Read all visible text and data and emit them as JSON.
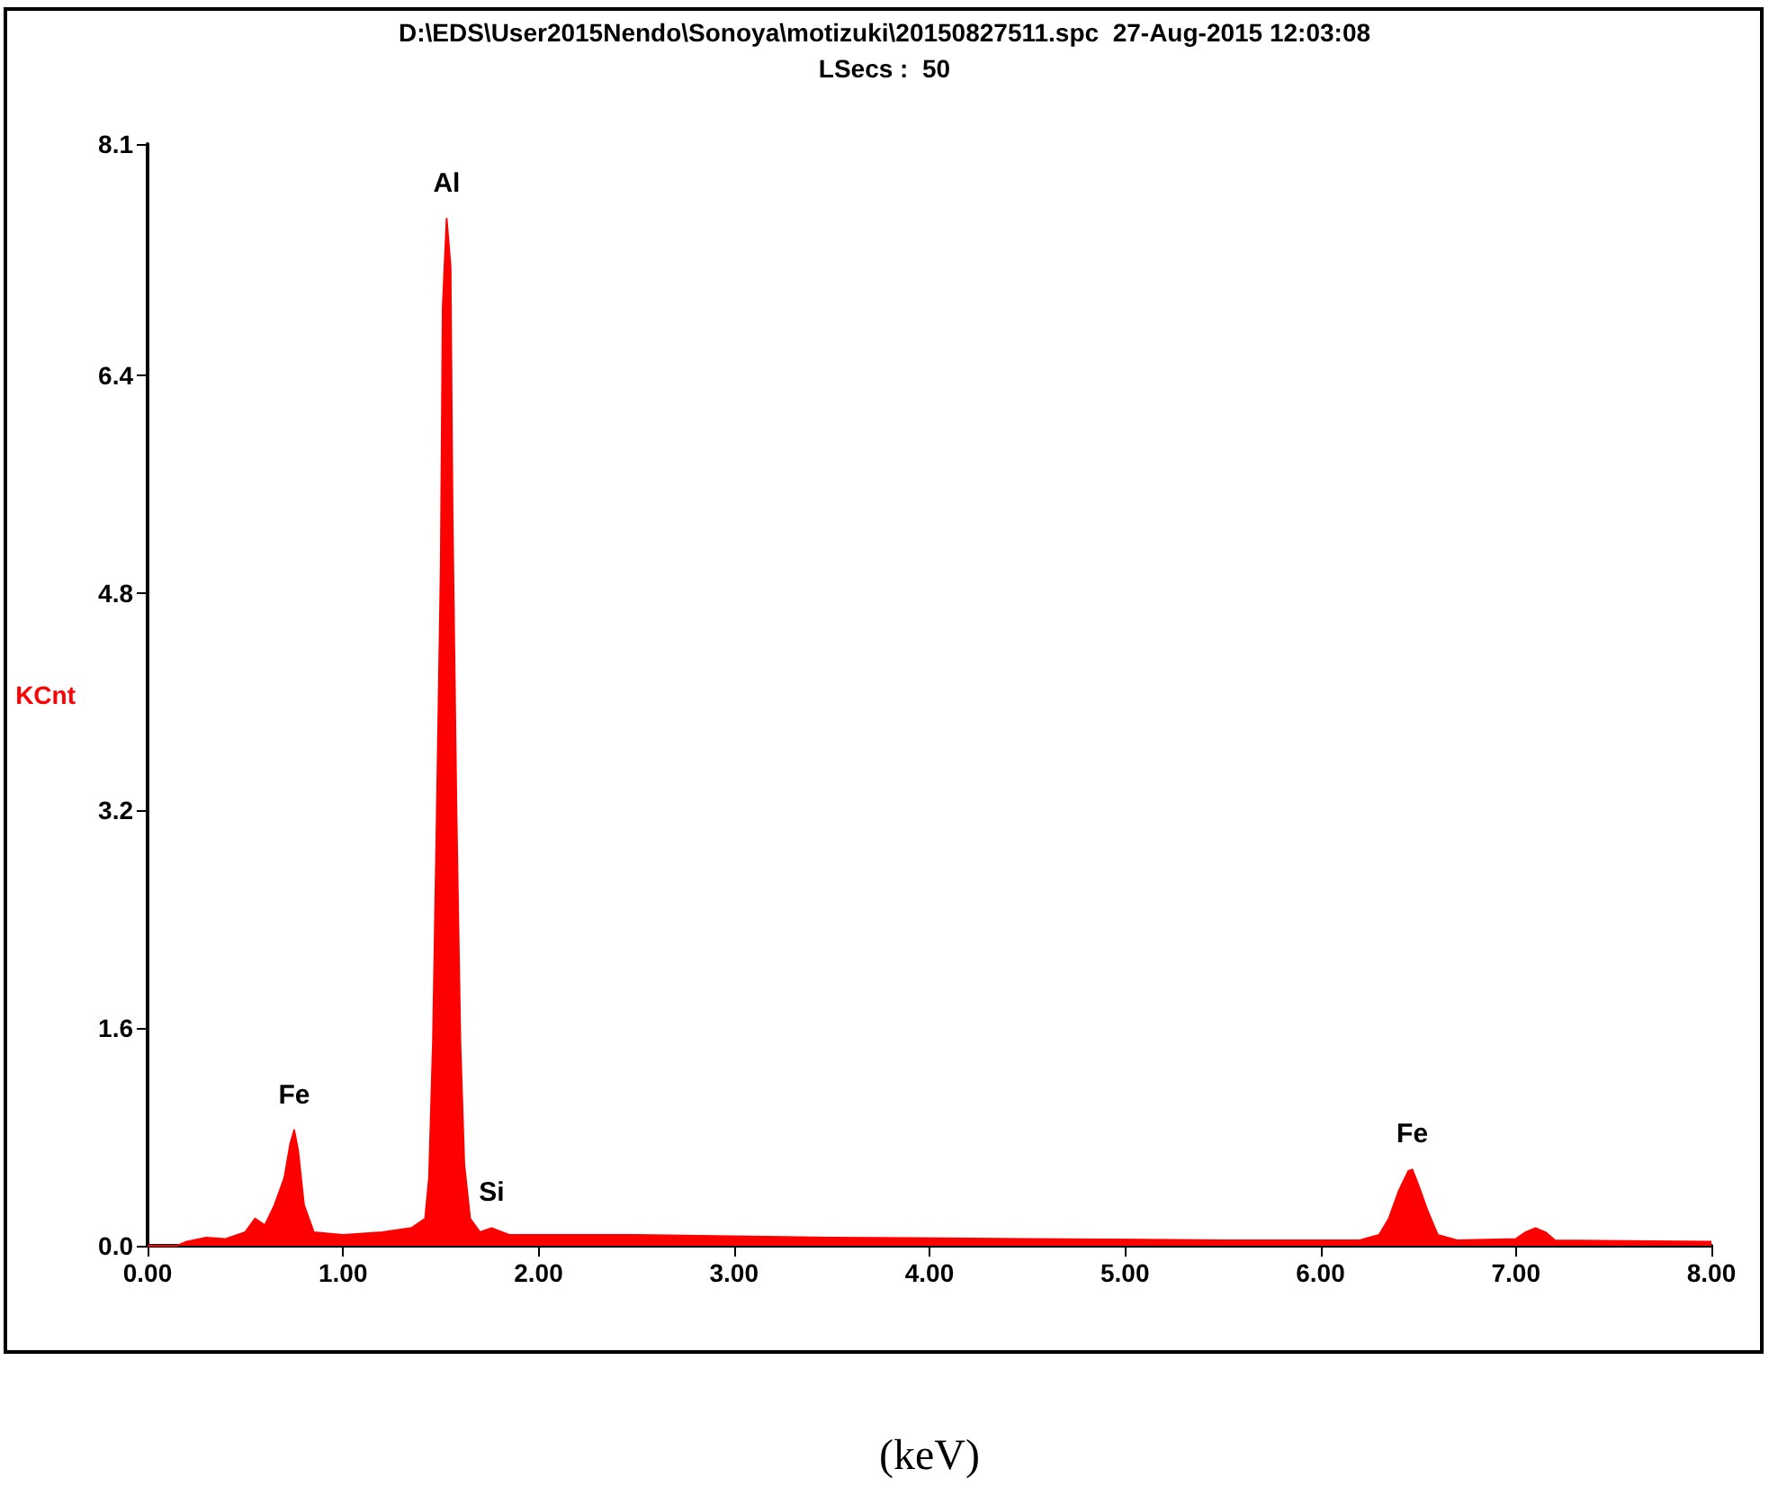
{
  "chart_data": {
    "type": "area",
    "title": "D:\\EDS\\User2015Nendo\\Sonoya\\motizuki\\20150827511.spc  27-Aug-2015 12:03:08",
    "subtitle": "LSecs :  50",
    "xlabel": "(keV)",
    "ylabel": "KCnt",
    "x": [
      0,
      0.15,
      0.2,
      0.3,
      0.4,
      0.5,
      0.55,
      0.6,
      0.65,
      0.7,
      0.73,
      0.75,
      0.77,
      0.8,
      0.85,
      1.0,
      1.2,
      1.35,
      1.42,
      1.44,
      1.46,
      1.48,
      1.5,
      1.51,
      1.53,
      1.55,
      1.56,
      1.58,
      1.6,
      1.62,
      1.65,
      1.7,
      1.76,
      1.85,
      2.5,
      3.5,
      4.5,
      5.5,
      6.2,
      6.3,
      6.35,
      6.4,
      6.45,
      6.47,
      6.5,
      6.55,
      6.6,
      6.7,
      7.0,
      7.05,
      7.1,
      7.15,
      7.2,
      8.0
    ],
    "series": [
      {
        "color": "#ff0000",
        "values": [
          0,
          0,
          0.03,
          0.06,
          0.05,
          0.1,
          0.2,
          0.15,
          0.3,
          0.5,
          0.75,
          0.85,
          0.7,
          0.3,
          0.1,
          0.08,
          0.1,
          0.13,
          0.2,
          0.5,
          1.5,
          3.2,
          5.0,
          6.9,
          7.55,
          7.2,
          5.4,
          3.2,
          1.5,
          0.6,
          0.2,
          0.1,
          0.13,
          0.08,
          0.08,
          0.06,
          0.05,
          0.04,
          0.04,
          0.08,
          0.2,
          0.4,
          0.55,
          0.56,
          0.45,
          0.25,
          0.08,
          0.04,
          0.05,
          0.1,
          0.13,
          0.1,
          0.04,
          0.03
        ]
      }
    ],
    "xlim": [
      0,
      8
    ],
    "ylim": [
      0,
      8.1
    ],
    "xticks": [
      {
        "value": 0,
        "label": "0.00"
      },
      {
        "value": 1,
        "label": "1.00"
      },
      {
        "value": 2,
        "label": "2.00"
      },
      {
        "value": 3,
        "label": "3.00"
      },
      {
        "value": 4,
        "label": "4.00"
      },
      {
        "value": 5,
        "label": "5.00"
      },
      {
        "value": 6,
        "label": "6.00"
      },
      {
        "value": 7,
        "label": "7.00"
      },
      {
        "value": 8,
        "label": "8.00"
      }
    ],
    "yticks": [
      {
        "value": 0,
        "label": "0.0"
      },
      1.6,
      3.2,
      4.8,
      6.4,
      8.1
    ],
    "annotations": [
      {
        "text": "Fe",
        "x": 0.75,
        "y": 0.85
      },
      {
        "text": "Al",
        "x": 1.53,
        "y": 7.55
      },
      {
        "text": "Si",
        "x": 1.76,
        "y": 0.13
      },
      {
        "text": "Fe",
        "x": 6.47,
        "y": 0.56
      }
    ],
    "grid": false
  }
}
